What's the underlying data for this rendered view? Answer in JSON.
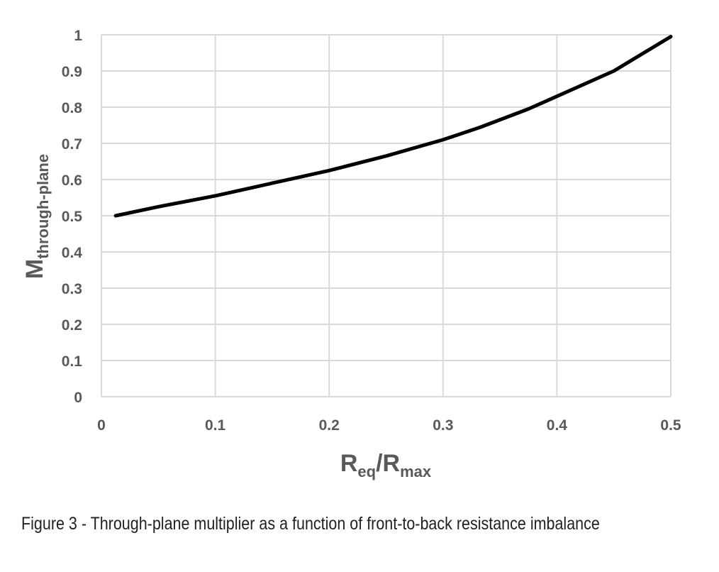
{
  "chart_data": {
    "type": "line",
    "x": [
      0.0125,
      0.05,
      0.1,
      0.15,
      0.2,
      0.25,
      0.3,
      0.333,
      0.375,
      0.4,
      0.45,
      0.5
    ],
    "series": [
      {
        "values": [
          0.5,
          0.525,
          0.555,
          0.59,
          0.625,
          0.665,
          0.71,
          0.745,
          0.795,
          0.83,
          0.9,
          0.995
        ]
      }
    ],
    "x_ticks": [
      "0",
      "0.1",
      "0.2",
      "0.3",
      "0.4",
      "0.5"
    ],
    "y_ticks": [
      "0",
      "0.1",
      "0.2",
      "0.3",
      "0.4",
      "0.5",
      "0.6",
      "0.7",
      "0.8",
      "0.9",
      "1"
    ],
    "xlabel": {
      "main": "R",
      "sub1": "eq",
      "mid": "/R",
      "sub2": "max"
    },
    "ylabel": {
      "main": "M",
      "sub": "through-plane"
    },
    "xlim": [
      0,
      0.5
    ],
    "ylim": [
      0,
      1
    ],
    "grid": true,
    "line_color": "#000000"
  },
  "caption": "Figure 3 - Through-plane multiplier as a function of front-to-back resistance imbalance"
}
